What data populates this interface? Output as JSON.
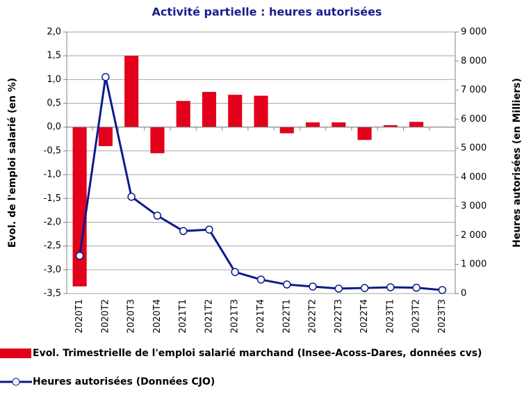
{
  "chart_data": {
    "type": "bar_line",
    "title": "Activité partielle : heures autorisées",
    "y_label": "Evol. de l'emploi salarié (en %)",
    "y2_label": "Heures autorisées (en Milliers)",
    "categories": [
      "2020T1",
      "2020T2",
      "2020T3",
      "2020T4",
      "2021T1",
      "2021T2",
      "2021T3",
      "2021T4",
      "2022T1",
      "2022T2",
      "2022T3",
      "2022T4",
      "2023T1",
      "2023T2",
      "2023T3"
    ],
    "series": [
      {
        "name": "Evol. Trimestrielle de l'emploi salarié marchand (Insee-Acoss-Dares, données cvs)",
        "type": "bar",
        "color": "#e2001a",
        "values": [
          -3.35,
          -0.4,
          1.5,
          -0.55,
          0.55,
          0.74,
          0.68,
          0.66,
          -0.13,
          0.1,
          0.1,
          -0.27,
          0.04,
          0.11,
          0
        ]
      },
      {
        "name": "Heures autorisées (Données CJO)",
        "type": "line",
        "axis": "y2",
        "color": "#0a1a8c",
        "values": [
          1300,
          7450,
          3330,
          2680,
          2150,
          2200,
          740,
          480,
          310,
          240,
          170,
          190,
          215,
          200,
          120
        ]
      }
    ],
    "ylim": [
      -3.5,
      2.0
    ],
    "yticks": [
      {
        "value": 2.0,
        "label": "2,0"
      },
      {
        "value": 1.5,
        "label": "1,5"
      },
      {
        "value": 1.0,
        "label": "1,0"
      },
      {
        "value": 0.5,
        "label": "0,5"
      },
      {
        "value": 0,
        "label": "0,0"
      },
      {
        "value": -0.5,
        "label": "-0,5"
      },
      {
        "value": -1.0,
        "label": "-1,0"
      },
      {
        "value": -1.5,
        "label": "-1,5"
      },
      {
        "value": -2.0,
        "label": "-2,0"
      },
      {
        "value": -2.5,
        "label": "-2,5"
      },
      {
        "value": -3.0,
        "label": "-3,0"
      },
      {
        "value": -3.5,
        "label": "-3,5"
      }
    ],
    "y2lim": [
      0,
      9000
    ],
    "y2ticks": [
      {
        "value": 9000,
        "label": "9 000"
      },
      {
        "value": 8000,
        "label": "8 000"
      },
      {
        "value": 7000,
        "label": "7 000"
      },
      {
        "value": 6000,
        "label": "6 000"
      },
      {
        "value": 5000,
        "label": "5 000"
      },
      {
        "value": 4000,
        "label": "4 000"
      },
      {
        "value": 3000,
        "label": "3 000"
      },
      {
        "value": 2000,
        "label": "2 000"
      },
      {
        "value": 1000,
        "label": "1 000"
      },
      0
    ],
    "grid": true
  }
}
